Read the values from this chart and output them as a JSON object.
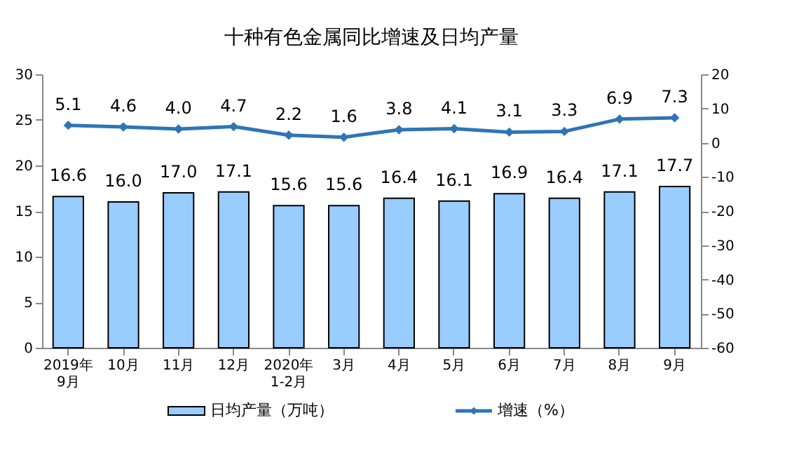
{
  "chart_data": {
    "type": "bar",
    "title": "十种有色金属同比增速及日均产量",
    "categories": [
      "2019年\n9月",
      "10月",
      "11月",
      "12月",
      "2020年\n1-2月",
      "3月",
      "4月",
      "5月",
      "6月",
      "7月",
      "8月",
      "9月"
    ],
    "series": [
      {
        "name": "日均产量（万吨）",
        "color": "#99ccff",
        "values": [
          16.6,
          16.0,
          17.0,
          17.1,
          15.6,
          15.6,
          16.4,
          16.1,
          16.9,
          16.4,
          17.1,
          17.7
        ],
        "value_labels": [
          "16.6",
          "16.0",
          "17.0",
          "17.1",
          "15.6",
          "15.6",
          "16.4",
          "16.1",
          "16.9",
          "16.4",
          "17.1",
          "17.7"
        ]
      },
      {
        "name": "增速（%）",
        "type": "line",
        "axis": "y2",
        "color": "#2e75b6",
        "marker": "diamond",
        "values": [
          5.1,
          4.6,
          4.0,
          4.7,
          2.2,
          1.6,
          3.8,
          4.1,
          3.1,
          3.3,
          6.9,
          7.3
        ],
        "value_labels": [
          "5.1",
          "4.6",
          "4.0",
          "4.7",
          "2.2",
          "1.6",
          "3.8",
          "4.1",
          "3.1",
          "3.3",
          "6.9",
          "7.3"
        ]
      }
    ],
    "ylim": [
      0,
      30
    ],
    "yticks": [
      0,
      5,
      10,
      15,
      20,
      25,
      30
    ],
    "y2lim": [
      -60,
      20
    ],
    "y2ticks": [
      -60,
      -50,
      -40,
      -30,
      -20,
      -10,
      0,
      10,
      20
    ],
    "grid": false,
    "legend": "bottom"
  }
}
